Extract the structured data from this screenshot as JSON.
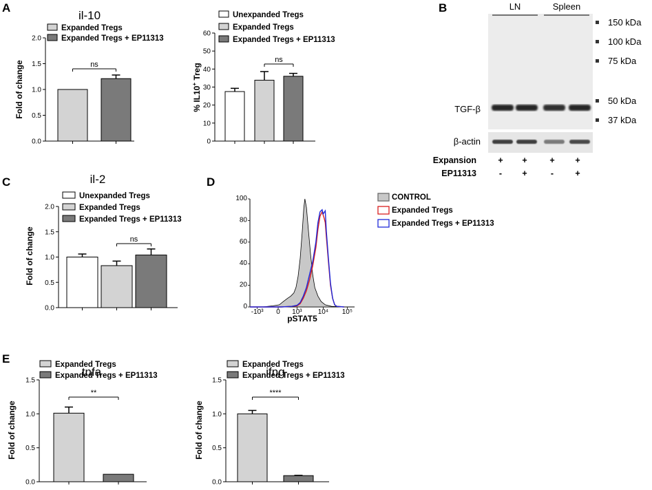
{
  "panels": {
    "A": "A",
    "B": "B",
    "C": "C",
    "D": "D",
    "E": "E"
  },
  "chart_data": [
    {
      "id": "il10-fold",
      "type": "bar",
      "title": "il-10",
      "ylabel": "Fold of change",
      "ylim": [
        0,
        2.0
      ],
      "yticks": [
        "0.0",
        "0.5",
        "1.0",
        "1.5",
        "2.0"
      ],
      "categories": [
        "Expanded Tregs",
        "Expanded Tregs + EP11313"
      ],
      "values": [
        1.0,
        1.21
      ],
      "errors": [
        0,
        0.07
      ],
      "colors": [
        "#d3d3d3",
        "#7a7a7a"
      ],
      "legend": [
        "Expanded Tregs",
        "Expanded Tregs + EP11313"
      ],
      "significance": [
        {
          "from": 0,
          "to": 1,
          "label": "ns"
        }
      ]
    },
    {
      "id": "il10-treg",
      "type": "bar",
      "title": "",
      "ylabel": "% IL10",
      "ylabel_sup": "+",
      "ylabel_suffix": " Treg",
      "ylim": [
        0,
        60
      ],
      "yticks": [
        "0",
        "10",
        "20",
        "30",
        "40",
        "50",
        "60"
      ],
      "categories": [
        "Unexpanded Tregs",
        "Expanded Tregs",
        "Expanded Tregs + EP11313"
      ],
      "values": [
        27.5,
        33.8,
        36.0
      ],
      "errors": [
        1.8,
        4.8,
        1.6
      ],
      "colors": [
        "#ffffff",
        "#d3d3d3",
        "#7a7a7a"
      ],
      "legend": [
        "Unexpanded Tregs",
        "Expanded Tregs",
        "Expanded Tregs + EP11313"
      ],
      "significance": [
        {
          "from": 1,
          "to": 2,
          "label": "ns"
        }
      ]
    },
    {
      "id": "il2-fold",
      "type": "bar",
      "title": "il-2",
      "ylabel": "Fold of change",
      "ylim": [
        0,
        2.0
      ],
      "yticks": [
        "0.0",
        "0.5",
        "1.0",
        "1.5",
        "2.0"
      ],
      "categories": [
        "Unexpanded Tregs",
        "Expanded Tregs",
        "Expanded Tregs + EP11313"
      ],
      "values": [
        1.0,
        0.83,
        1.04
      ],
      "errors": [
        0.06,
        0.09,
        0.12
      ],
      "colors": [
        "#ffffff",
        "#d3d3d3",
        "#7a7a7a"
      ],
      "legend": [
        "Unexpanded Tregs",
        "Expanded Tregs",
        "Expanded Tregs + EP11313"
      ],
      "significance": [
        {
          "from": 1,
          "to": 2,
          "label": "ns"
        }
      ]
    },
    {
      "id": "pstat5-flow",
      "type": "line",
      "title": "",
      "xlabel": "pSTAT5",
      "ylabel": "",
      "xticks": [
        "-10³",
        "0",
        "10³",
        "10⁴",
        "10⁵"
      ],
      "yticks": [
        "0",
        "20",
        "40",
        "60",
        "80",
        "100"
      ],
      "ylim": [
        0,
        100
      ],
      "legend": [
        "CONTROL",
        "Expanded Tregs",
        "Expanded Tregs + EP11313"
      ],
      "series": [
        {
          "name": "CONTROL",
          "color": "#000000",
          "fill": "#c8c8c8",
          "points": [
            [
              0,
              0
            ],
            [
              0.12,
              0
            ],
            [
              0.22,
              1
            ],
            [
              0.28,
              2
            ],
            [
              0.32,
              5
            ],
            [
              0.36,
              8
            ],
            [
              0.39,
              10
            ],
            [
              0.42,
              13
            ],
            [
              0.44,
              18
            ],
            [
              0.46,
              28
            ],
            [
              0.48,
              45
            ],
            [
              0.5,
              70
            ],
            [
              0.515,
              92
            ],
            [
              0.525,
              100
            ],
            [
              0.54,
              92
            ],
            [
              0.56,
              70
            ],
            [
              0.58,
              48
            ],
            [
              0.6,
              30
            ],
            [
              0.62,
              18
            ],
            [
              0.65,
              10
            ],
            [
              0.68,
              5
            ],
            [
              0.72,
              2
            ],
            [
              0.78,
              0.5
            ],
            [
              0.9,
              0
            ]
          ]
        },
        {
          "name": "Expanded Tregs",
          "color": "#d91e1e",
          "fill": "none",
          "points": [
            [
              0,
              0
            ],
            [
              0.3,
              0
            ],
            [
              0.4,
              0.5
            ],
            [
              0.45,
              1
            ],
            [
              0.48,
              3
            ],
            [
              0.51,
              8
            ],
            [
              0.54,
              15
            ],
            [
              0.57,
              25
            ],
            [
              0.6,
              38
            ],
            [
              0.63,
              55
            ],
            [
              0.65,
              72
            ],
            [
              0.67,
              84
            ],
            [
              0.69,
              88
            ],
            [
              0.71,
              82
            ],
            [
              0.72,
              78
            ],
            [
              0.73,
              65
            ],
            [
              0.75,
              42
            ],
            [
              0.77,
              20
            ],
            [
              0.79,
              8
            ],
            [
              0.81,
              2
            ],
            [
              0.83,
              0.5
            ],
            [
              0.9,
              0
            ]
          ]
        },
        {
          "name": "Expanded Tregs + EP11313",
          "color": "#1e28d9",
          "fill": "none",
          "points": [
            [
              0,
              0
            ],
            [
              0.3,
              0
            ],
            [
              0.4,
              0.5
            ],
            [
              0.45,
              1.5
            ],
            [
              0.48,
              4
            ],
            [
              0.51,
              10
            ],
            [
              0.54,
              18
            ],
            [
              0.57,
              30
            ],
            [
              0.6,
              42
            ],
            [
              0.63,
              60
            ],
            [
              0.65,
              78
            ],
            [
              0.67,
              88
            ],
            [
              0.69,
              90
            ],
            [
              0.7,
              86
            ],
            [
              0.72,
              89
            ],
            [
              0.73,
              70
            ],
            [
              0.75,
              45
            ],
            [
              0.77,
              22
            ],
            [
              0.79,
              8
            ],
            [
              0.81,
              2
            ],
            [
              0.83,
              0.5
            ],
            [
              0.9,
              0
            ]
          ]
        }
      ]
    },
    {
      "id": "tnfa-fold",
      "type": "bar",
      "title": "tnfa",
      "ylabel": "Fold of change",
      "ylim": [
        0,
        1.5
      ],
      "yticks": [
        "0.0",
        "0.5",
        "1.0",
        "1.5"
      ],
      "categories": [
        "Expanded Tregs",
        "Expanded Tregs + EP11313"
      ],
      "values": [
        1.01,
        0.11
      ],
      "errors": [
        0.09,
        0
      ],
      "colors": [
        "#d3d3d3",
        "#7a7a7a"
      ],
      "legend": [
        "Expanded Tregs",
        "Expanded Tregs + EP11313"
      ],
      "significance": [
        {
          "from": 0,
          "to": 1,
          "label": "**"
        }
      ]
    },
    {
      "id": "ifng-fold",
      "type": "bar",
      "title": "ifng",
      "ylabel": "Fold of change",
      "ylim": [
        0,
        1.5
      ],
      "yticks": [
        "0.0",
        "0.5",
        "1.0",
        "1.5"
      ],
      "categories": [
        "Expanded Tregs",
        "Expanded Tregs + EP11313"
      ],
      "values": [
        1.0,
        0.09
      ],
      "errors": [
        0.05,
        0.005
      ],
      "colors": [
        "#d3d3d3",
        "#7a7a7a"
      ],
      "legend": [
        "Expanded Tregs",
        "Expanded Tregs + EP11313"
      ],
      "significance": [
        {
          "from": 0,
          "to": 1,
          "label": "****"
        }
      ]
    }
  ],
  "blot": {
    "lane_groups": [
      "LN",
      "Spleen"
    ],
    "markers": [
      "150 kDa",
      "100 kDa",
      "75 kDa",
      "50 kDa",
      "37 kDa"
    ],
    "protein_top": "TGF-β",
    "protein_bottom": "β-actin",
    "rows": [
      {
        "label": "Expansion",
        "values": [
          "+",
          "+",
          "+",
          "+"
        ]
      },
      {
        "label": "EP11313",
        "values": [
          "-",
          "+",
          "-",
          "+"
        ]
      }
    ],
    "band_intensity_tgfb": [
      0.95,
      0.95,
      0.9,
      0.95
    ],
    "band_intensity_actin": [
      0.85,
      0.85,
      0.55,
      0.8
    ]
  }
}
